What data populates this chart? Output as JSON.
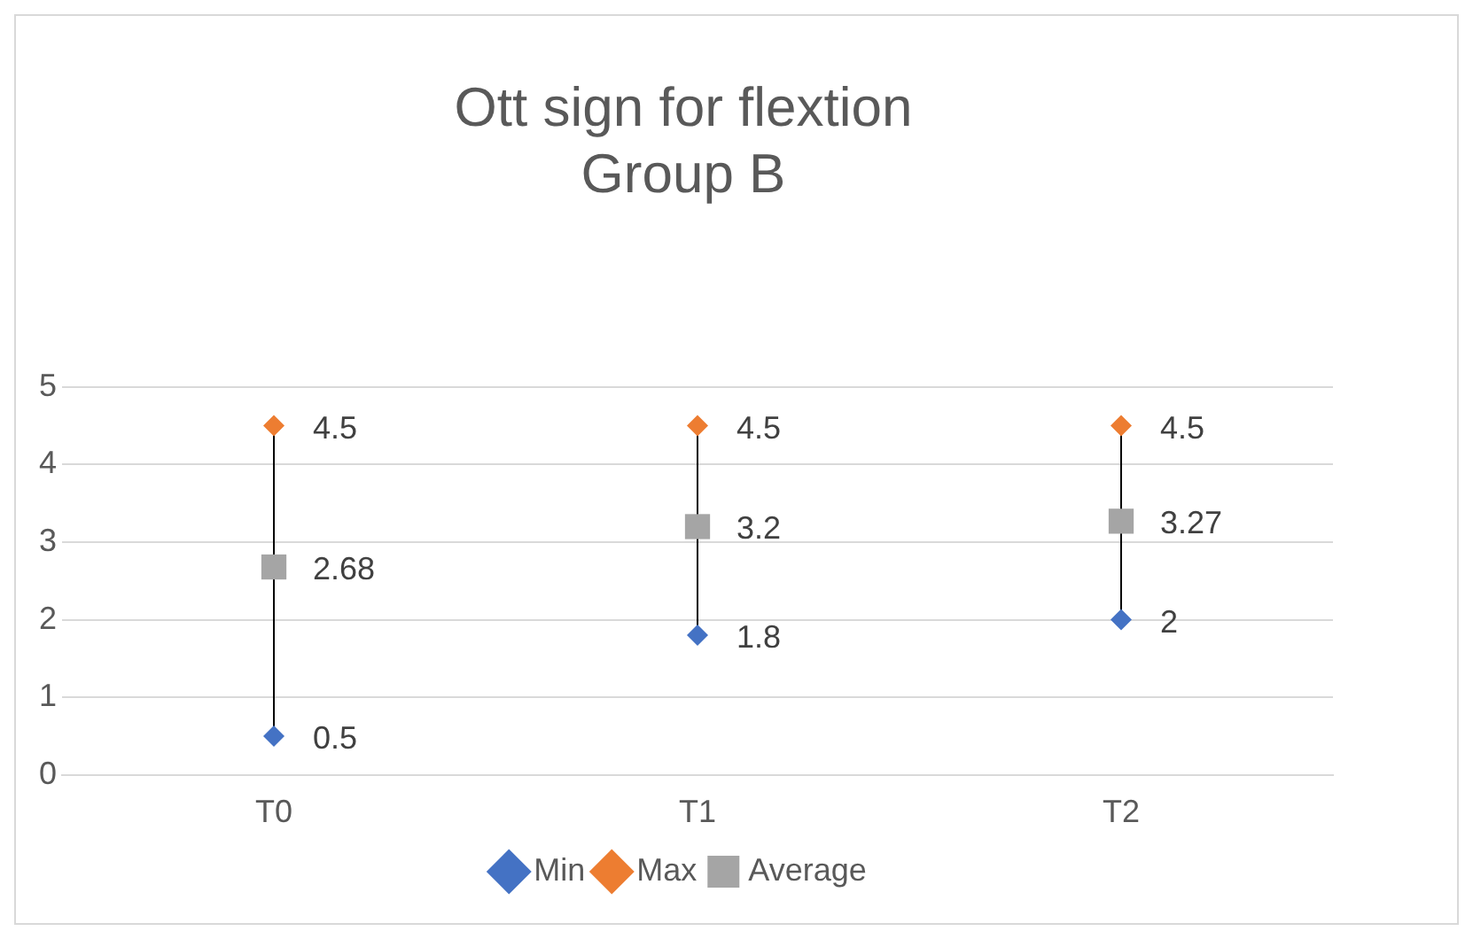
{
  "chart_data": {
    "type": "scatter",
    "title": "Ott sign for flextion",
    "subtitle": "Group B",
    "categories": [
      "T0",
      "T1",
      "T2"
    ],
    "series": [
      {
        "name": "Min",
        "color": "#4472c4",
        "marker": "diamond",
        "values": [
          0.5,
          1.8,
          2
        ]
      },
      {
        "name": "Max",
        "color": "#ed7d31",
        "marker": "diamond",
        "values": [
          4.5,
          4.5,
          4.5
        ]
      },
      {
        "name": "Average",
        "color": "#a5a5a5",
        "marker": "square",
        "values": [
          2.68,
          3.2,
          3.27
        ]
      }
    ],
    "ylim": [
      0,
      5
    ],
    "yticks": [
      0,
      1,
      2,
      3,
      4,
      5
    ],
    "grid": "y",
    "legend": "bottom",
    "data_labels": true
  }
}
